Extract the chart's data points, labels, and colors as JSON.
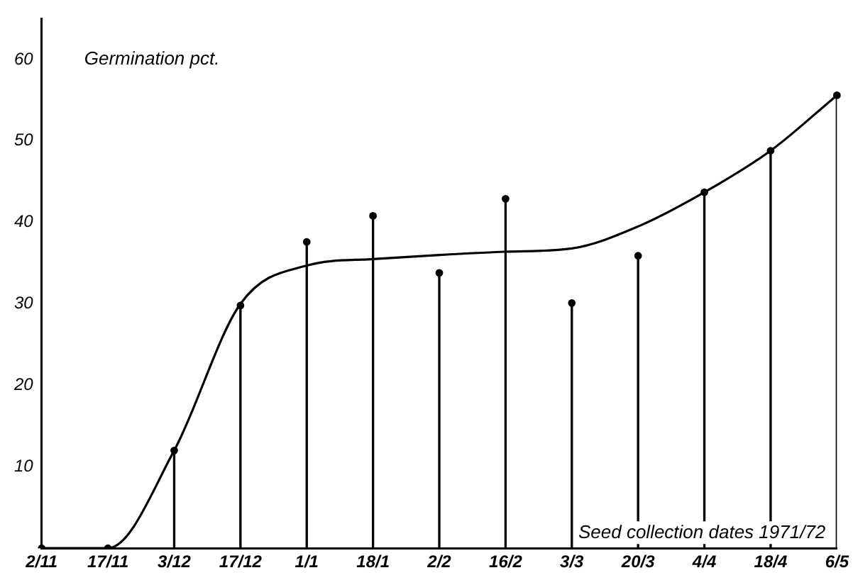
{
  "chart_data": {
    "type": "lollipop",
    "xlabel": "Seed collection dates 1971/72",
    "ylabel": "Germination pct.",
    "categories": [
      "2/11",
      "17/11",
      "3/12",
      "17/12",
      "1/1",
      "18/1",
      "2/2",
      "16/2",
      "3/3",
      "20/3",
      "4/4",
      "18/4",
      "6/5"
    ],
    "series": [
      {
        "type": "lollipop",
        "color": "#000000",
        "values": [
          0,
          0,
          12,
          29.8,
          37.6,
          40.8,
          33.8,
          42.9,
          30.1,
          35.9,
          43.7,
          48.8,
          55.6
        ]
      },
      {
        "type": "line",
        "color": "#000000",
        "marker": "none",
        "values": [
          0,
          0,
          12,
          30,
          34.7,
          35.5,
          36,
          36.4,
          36.8,
          39.5,
          43.7,
          48.8,
          55.6
        ]
      }
    ],
    "ylim": [
      0,
      65
    ],
    "yticks": [
      10,
      20,
      30,
      40,
      50,
      60
    ],
    "grid": false,
    "legend": false,
    "marker": "circle"
  }
}
